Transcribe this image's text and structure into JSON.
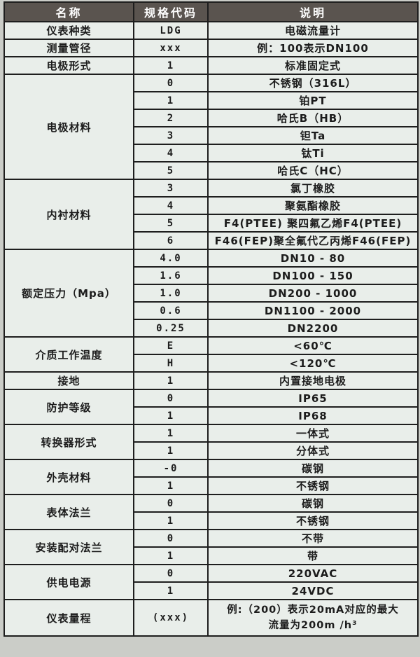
{
  "table": {
    "header": {
      "col_name": "名称",
      "col_code": "规格代码",
      "col_desc": "说明"
    },
    "colors": {
      "header_bg": "#5a544f",
      "header_text": "#ffffff",
      "cell_bg": "#e9eeea",
      "border": "#1e1e1e",
      "page_bg": "#cbcdc8"
    },
    "groups": [
      {
        "name": "仪表种类",
        "rows": [
          {
            "code": "LDG",
            "desc": "电磁流量计"
          }
        ]
      },
      {
        "name": "测量管径",
        "rows": [
          {
            "code": "xxx",
            "desc": "例：100表示DN100"
          }
        ]
      },
      {
        "name": "电极形式",
        "rows": [
          {
            "code": "1",
            "desc": "标准固定式"
          }
        ]
      },
      {
        "name": "电极材料",
        "rows": [
          {
            "code": "0",
            "desc": "不锈钢（316L）"
          },
          {
            "code": "1",
            "desc": "铂PT"
          },
          {
            "code": "2",
            "desc": "哈氏B（HB）"
          },
          {
            "code": "3",
            "desc": "钽Ta"
          },
          {
            "code": "4",
            "desc": "钛Ti"
          },
          {
            "code": "5",
            "desc": "哈氏C（HC）"
          }
        ]
      },
      {
        "name": "内衬材料",
        "rows": [
          {
            "code": "3",
            "desc": "氯丁橡胶"
          },
          {
            "code": "4",
            "desc": "聚氨酯橡胶"
          },
          {
            "code": "5",
            "desc": "F4(PTEE) 聚四氟乙烯F4(PTEE)"
          },
          {
            "code": "6",
            "desc": "F46(FEP)聚全氟代乙丙烯F46(FEP)"
          }
        ]
      },
      {
        "name": "额定压力（Mpa）",
        "rows": [
          {
            "code": "4.0",
            "desc": "DN10 - 80"
          },
          {
            "code": "1.6",
            "desc": "DN100 - 150"
          },
          {
            "code": "1.0",
            "desc": "DN200 - 1000"
          },
          {
            "code": "0.6",
            "desc": "DN1100 - 2000"
          },
          {
            "code": "0.25",
            "desc": "DN2200"
          }
        ]
      },
      {
        "name": "介质工作温度",
        "rows": [
          {
            "code": "E",
            "desc": "<60℃"
          },
          {
            "code": "H",
            "desc": "<120℃"
          }
        ]
      },
      {
        "name": "接地",
        "rows": [
          {
            "code": "1",
            "desc": "内置接地电极"
          }
        ]
      },
      {
        "name": "防护等级",
        "rows": [
          {
            "code": "0",
            "desc": "IP65"
          },
          {
            "code": "1",
            "desc": "IP68"
          }
        ]
      },
      {
        "name": "转换器形式",
        "rows": [
          {
            "code": "1",
            "desc": "一体式"
          },
          {
            "code": "1",
            "desc": "分体式"
          }
        ]
      },
      {
        "name": "外壳材料",
        "rows": [
          {
            "code": "-0",
            "desc": "碳钢"
          },
          {
            "code": "1",
            "desc": "不锈钢"
          }
        ]
      },
      {
        "name": "表体法兰",
        "rows": [
          {
            "code": "0",
            "desc": "碳钢"
          },
          {
            "code": "1",
            "desc": "不锈钢"
          }
        ]
      },
      {
        "name": "安装配对法兰",
        "rows": [
          {
            "code": "0",
            "desc": "不带"
          },
          {
            "code": "1",
            "desc": "带"
          }
        ]
      },
      {
        "name": "供电电源",
        "rows": [
          {
            "code": "0",
            "desc": "220VAC"
          },
          {
            "code": "1",
            "desc": "24VDC"
          }
        ]
      },
      {
        "name": "仪表量程",
        "rows": [
          {
            "code": "(xxx)",
            "desc": "例:（200）表示20mA对应的最大\n流量为200m /h³",
            "tall": true
          }
        ]
      }
    ]
  }
}
